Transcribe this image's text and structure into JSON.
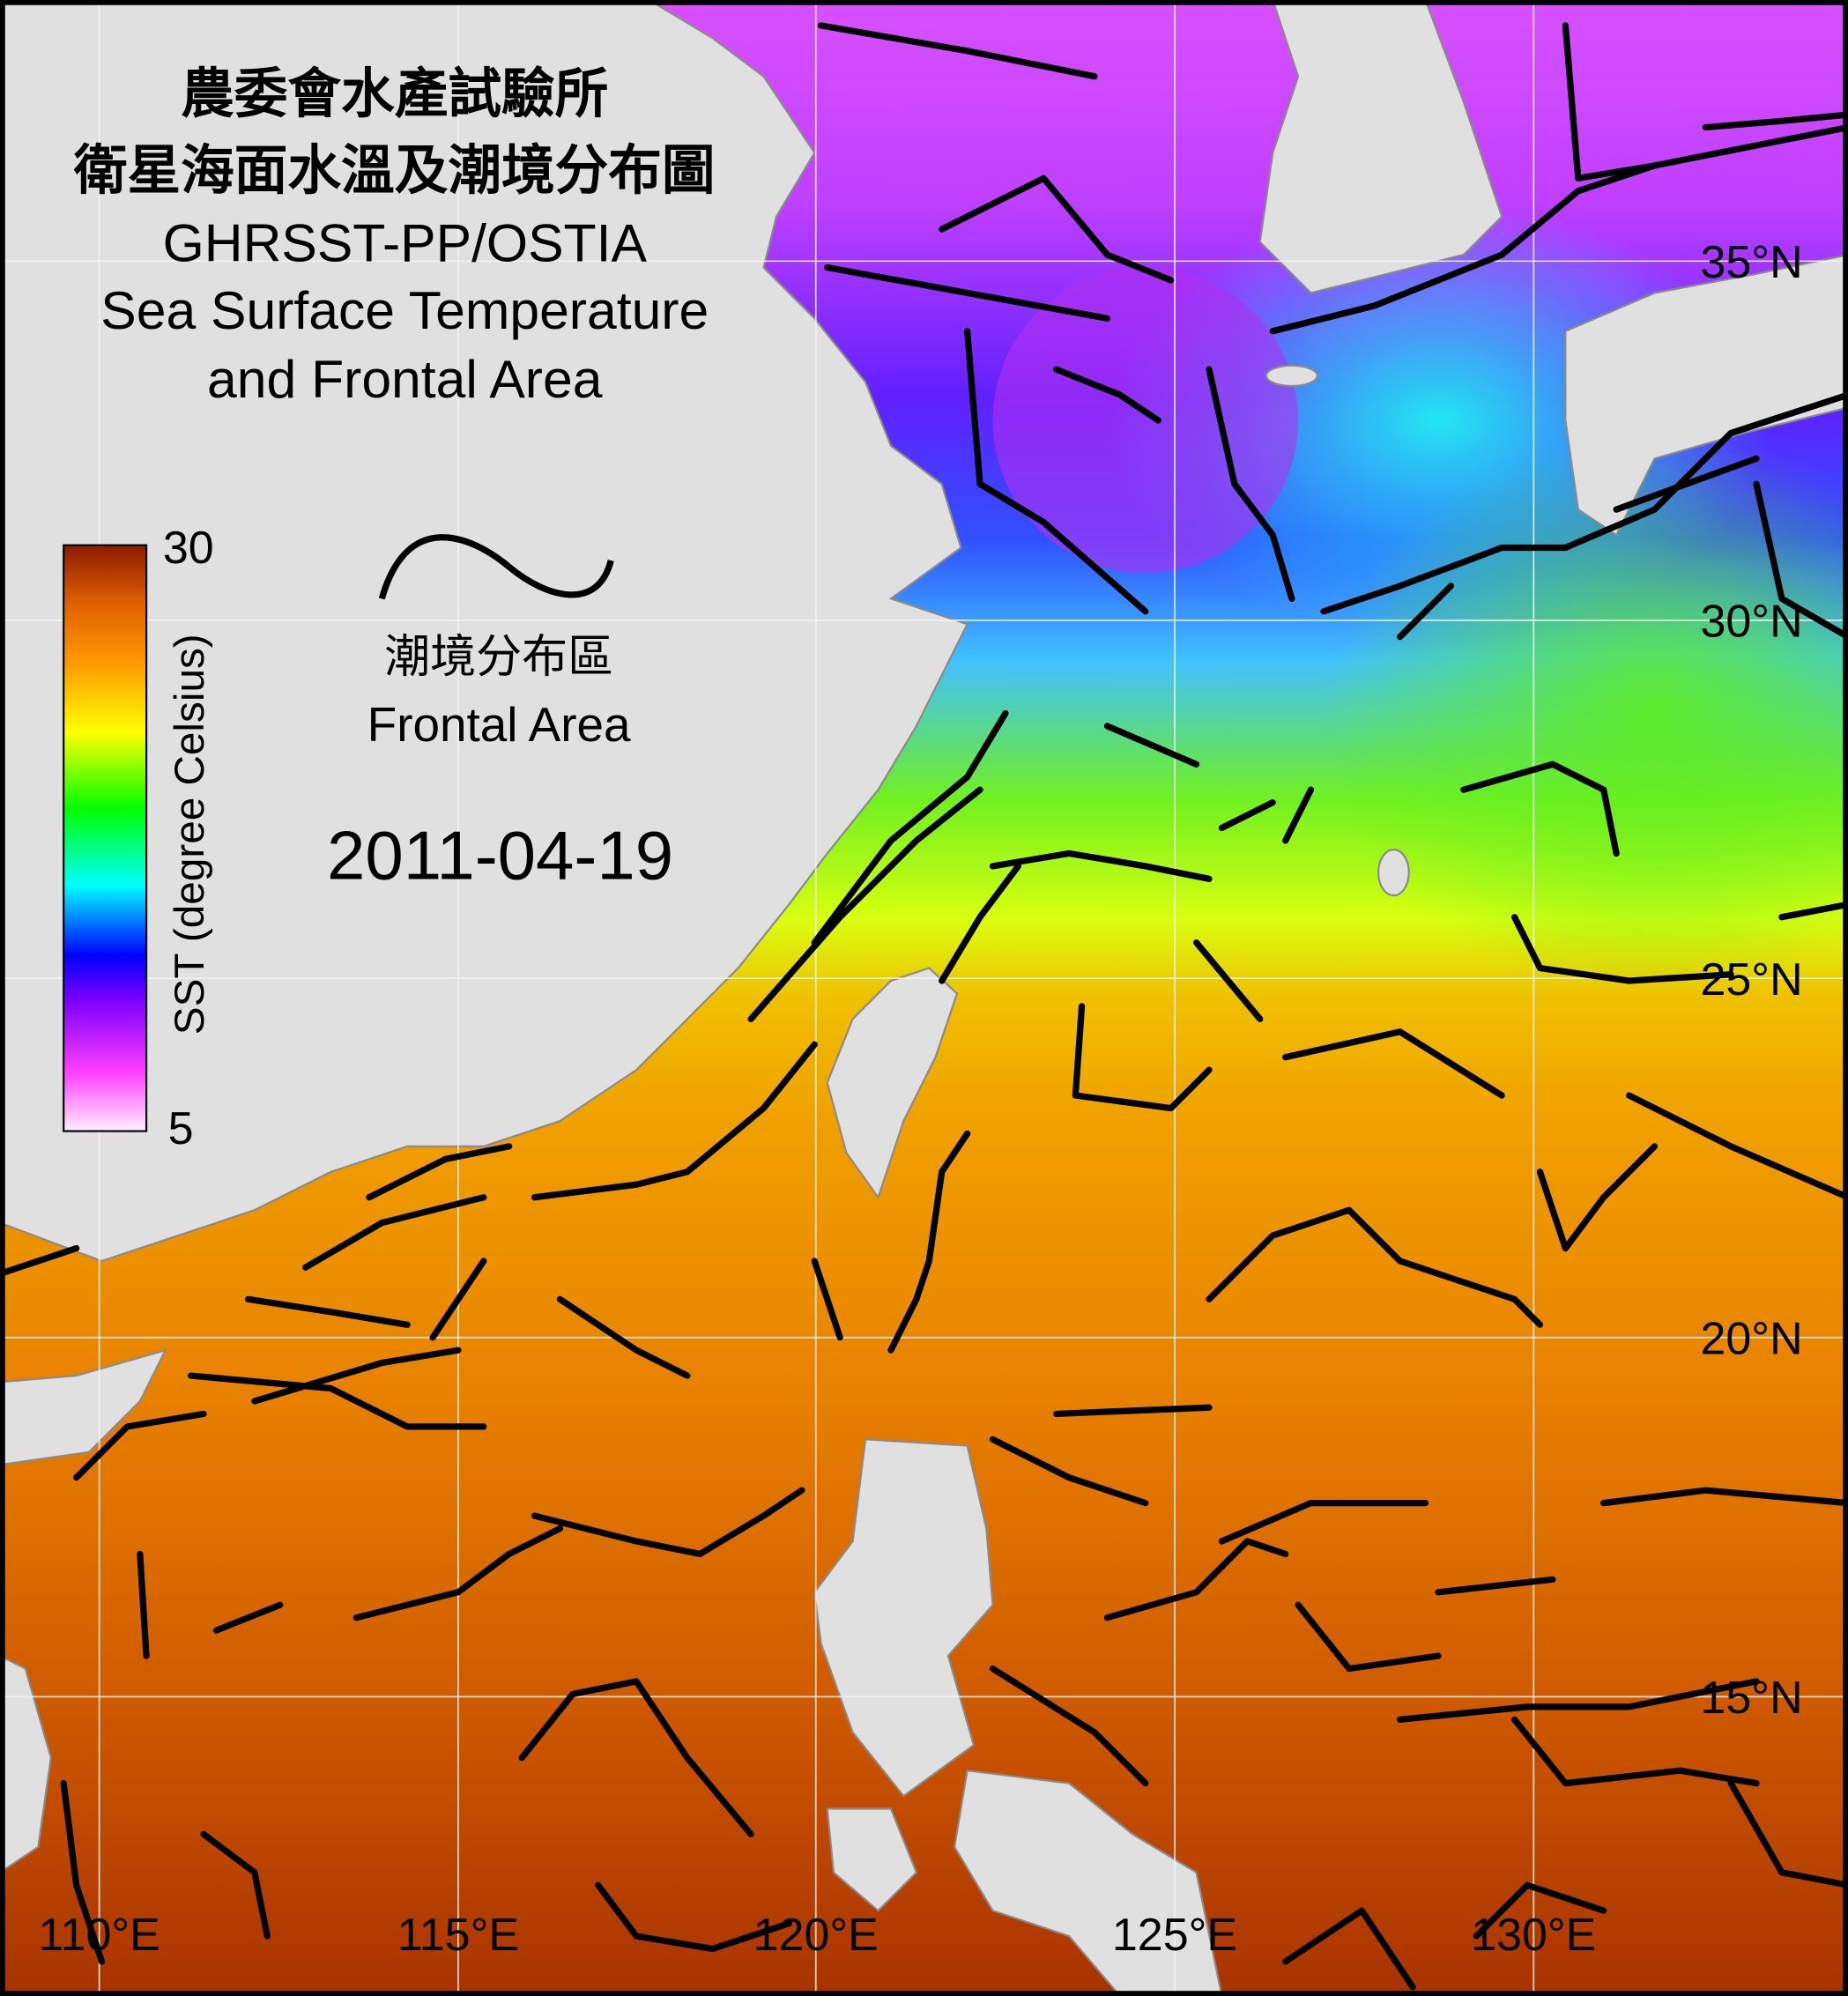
{
  "title": {
    "line1": "農委會水產試驗所",
    "line2": "衛星海面水溫及潮境分布圖",
    "line3": "GHRSST-PP/OSTIA",
    "line4": "Sea Surface Temperature",
    "line5": "and Frontal Area"
  },
  "legend": {
    "front_label_zh": "潮境分布區",
    "front_label_en": "Frontal Area",
    "front_icon": "black-wavy-line"
  },
  "date": "2011-04-19",
  "colorbar": {
    "label": "SST (degree Celsius)",
    "max": "30",
    "min": "5",
    "colors": [
      "#fff0ff",
      "#ff40ff",
      "#8000ff",
      "#0000ff",
      "#00ffff",
      "#00ff00",
      "#ffff00",
      "#ff9900",
      "#e06000",
      "#8b1a00"
    ]
  },
  "axes": {
    "longitude_labels": [
      "110°E",
      "115°E",
      "120°E",
      "125°E",
      "130°E"
    ],
    "latitude_labels": [
      "35°N",
      "30°N",
      "25°N",
      "20°N",
      "15°N"
    ]
  },
  "colors": {
    "land": "#e0e0e0",
    "frontal_line": "#000000",
    "grid": "#ffffff"
  }
}
